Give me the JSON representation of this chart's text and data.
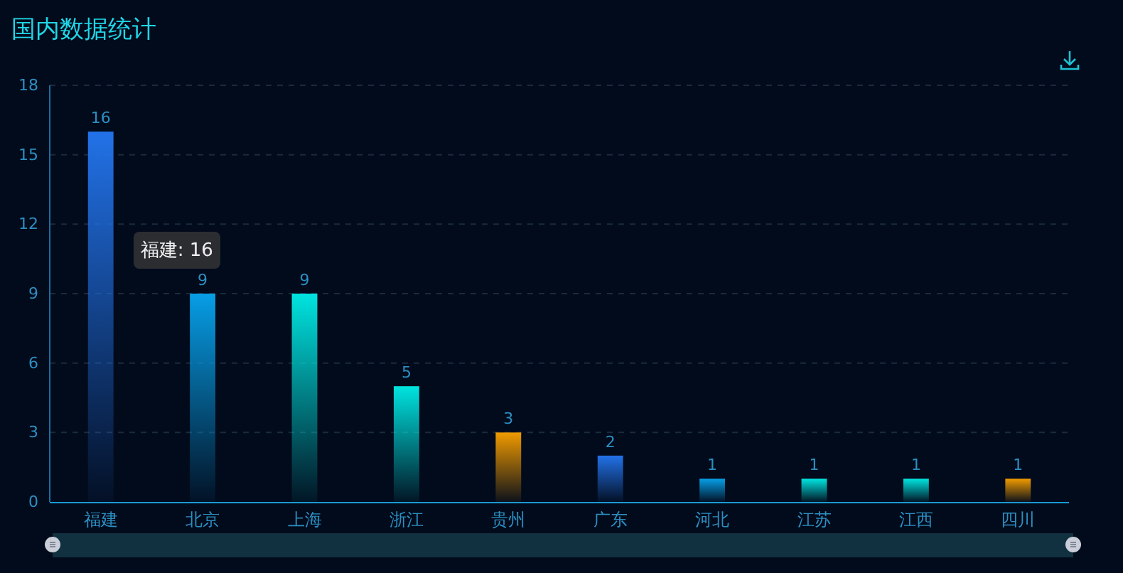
{
  "chart_data": {
    "type": "bar",
    "title": "国内数据统计",
    "categories": [
      "福建",
      "北京",
      "上海",
      "浙江",
      "贵州",
      "广东",
      "河北",
      "江苏",
      "江西",
      "四川"
    ],
    "values": [
      16,
      9,
      9,
      5,
      3,
      2,
      1,
      1,
      1,
      1
    ],
    "colors": [
      "#2272e8",
      "#079ee6",
      "#00e4e0",
      "#00e4e0",
      "#f09a00",
      "#2272e8",
      "#079ee6",
      "#00e4e0",
      "#00e4e0",
      "#f09a00"
    ],
    "ylim": [
      0,
      18
    ],
    "yticks": [
      0,
      3,
      6,
      9,
      12,
      15,
      18
    ],
    "grid": "y",
    "data_labels": true,
    "annotations": [
      "福建: 16"
    ]
  }
}
